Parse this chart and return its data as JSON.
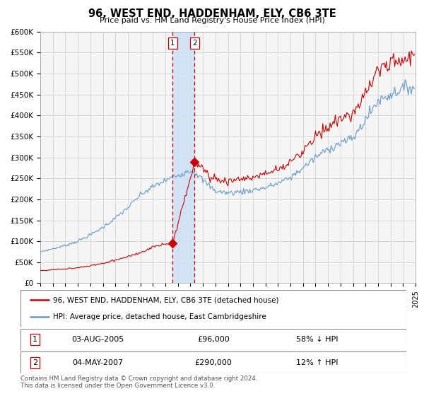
{
  "title": "96, WEST END, HADDENHAM, ELY, CB6 3TE",
  "subtitle": "Price paid vs. HM Land Registry's House Price Index (HPI)",
  "legend_line1": "96, WEST END, HADDENHAM, ELY, CB6 3TE (detached house)",
  "legend_line2": "HPI: Average price, detached house, East Cambridgeshire",
  "transaction1_date": "03-AUG-2005",
  "transaction1_price": 96000,
  "transaction1_note": "58% ↓ HPI",
  "transaction2_date": "04-MAY-2007",
  "transaction2_price": 290000,
  "transaction2_note": "12% ↑ HPI",
  "footer": "Contains HM Land Registry data © Crown copyright and database right 2024.\nThis data is licensed under the Open Government Licence v3.0.",
  "hpi_color": "#6699cc",
  "price_color": "#cc0000",
  "transaction1_x": 2005.585,
  "transaction2_x": 2007.336,
  "marker1_x": 2005.585,
  "marker1_y": 96000,
  "marker2_x": 2007.336,
  "marker2_y": 290000,
  "xmin": 1995,
  "xmax": 2025,
  "ymin": 0,
  "ymax": 600000,
  "yticks": [
    0,
    50000,
    100000,
    150000,
    200000,
    250000,
    300000,
    350000,
    400000,
    450000,
    500000,
    550000,
    600000
  ],
  "background_color": "#f5f5f5",
  "grid_color": "#cccccc"
}
